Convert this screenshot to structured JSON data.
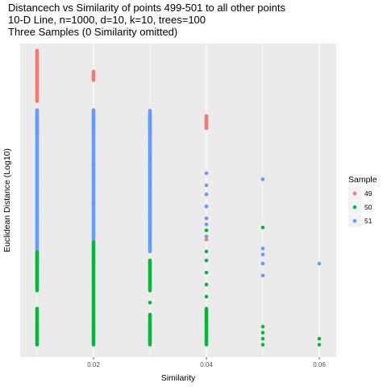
{
  "chart_data": {
    "type": "scatter",
    "title_lines": [
      "Distancech vs Similarity of points 499-501 to all other points",
      "10-D Line, n=1000, d=10, k=10, trees=100",
      "Three Samples (0 Similarity omitted)"
    ],
    "xlabel": "Similarity",
    "ylabel": "Euclidean Distance (Log10)",
    "xlim": [
      0.007,
      0.063
    ],
    "ylim": [
      0,
      1
    ],
    "x_ticks": [
      0.02,
      0.04,
      0.06
    ],
    "x_tick_labels": [
      "0.02",
      "0.04",
      "0.06"
    ],
    "y_ticks": [],
    "grid": true,
    "legend": {
      "title": "Sample",
      "placement": "right",
      "entries": [
        "49",
        "50",
        "51"
      ]
    },
    "colors": {
      "49": "#F8766D",
      "50": "#00BA38",
      "51": "#619CFF",
      "panel": "#EBEBEB",
      "grid": "#ffffff"
    },
    "series": [
      {
        "name": "49",
        "segments": [
          {
            "x": 0.01,
            "from": 0.83,
            "to": 1.0
          },
          {
            "x": 0.01,
            "from": 0.72,
            "to": 0.79
          },
          {
            "x": 0.02,
            "from": 0.9,
            "to": 0.93
          },
          {
            "x": 0.02,
            "from": 0.72,
            "to": 0.78
          },
          {
            "x": 0.03,
            "from": 0.72,
            "to": 0.78
          },
          {
            "x": 0.04,
            "from": 0.74,
            "to": 0.78
          }
        ],
        "points": [
          [
            0.01,
            0.55
          ],
          [
            0.01,
            0.45
          ],
          [
            0.01,
            0.3
          ],
          [
            0.02,
            0.62
          ],
          [
            0.02,
            0.49
          ],
          [
            0.03,
            0.62
          ],
          [
            0.04,
            0.4
          ],
          [
            0.04,
            0.37
          ]
        ]
      },
      {
        "name": "50",
        "segments": [
          {
            "x": 0.01,
            "from": 0.02,
            "to": 0.14
          },
          {
            "x": 0.01,
            "from": 0.2,
            "to": 0.33
          },
          {
            "x": 0.02,
            "from": 0.02,
            "to": 0.36
          },
          {
            "x": 0.03,
            "from": 0.02,
            "to": 0.12
          },
          {
            "x": 0.03,
            "from": 0.2,
            "to": 0.3
          },
          {
            "x": 0.04,
            "from": 0.02,
            "to": 0.14
          }
        ],
        "points": [
          [
            0.03,
            0.16
          ],
          [
            0.04,
            0.18
          ],
          [
            0.04,
            0.22
          ],
          [
            0.04,
            0.26
          ],
          [
            0.04,
            0.3
          ],
          [
            0.04,
            0.33
          ],
          [
            0.04,
            0.4
          ],
          [
            0.05,
            0.41
          ],
          [
            0.05,
            0.02
          ],
          [
            0.05,
            0.04
          ],
          [
            0.05,
            0.06
          ],
          [
            0.05,
            0.08
          ],
          [
            0.06,
            0.02
          ],
          [
            0.06,
            0.04
          ]
        ]
      },
      {
        "name": "51",
        "segments": [
          {
            "x": 0.01,
            "from": 0.22,
            "to": 0.8
          },
          {
            "x": 0.02,
            "from": 0.36,
            "to": 0.8
          },
          {
            "x": 0.03,
            "from": 0.33,
            "to": 0.8
          }
        ],
        "points": [
          [
            0.04,
            0.59
          ],
          [
            0.04,
            0.55
          ],
          [
            0.04,
            0.52
          ],
          [
            0.04,
            0.48
          ],
          [
            0.04,
            0.44
          ],
          [
            0.04,
            0.42
          ],
          [
            0.04,
            0.38
          ],
          [
            0.05,
            0.57
          ],
          [
            0.05,
            0.34
          ],
          [
            0.05,
            0.32
          ],
          [
            0.05,
            0.29
          ],
          [
            0.05,
            0.25
          ],
          [
            0.06,
            0.29
          ]
        ]
      }
    ]
  }
}
